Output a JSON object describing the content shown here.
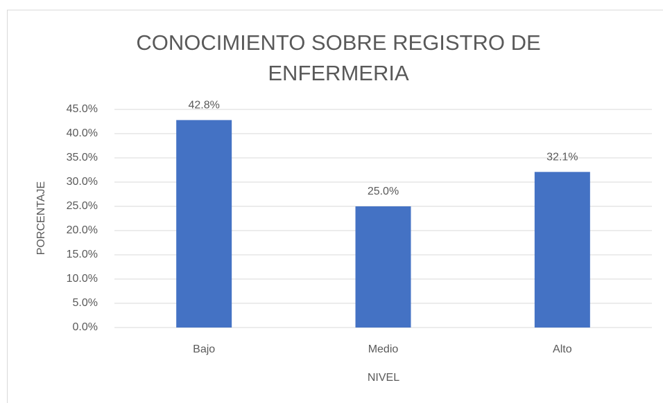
{
  "chart_data": {
    "type": "bar",
    "title": "CONOCIMIENTO SOBRE REGISTRO DE ENFERMERIA",
    "x_label": "NIVEL",
    "y_label": "PORCENTAJE",
    "categories": [
      "Bajo",
      "Medio",
      "Alto"
    ],
    "values": [
      42.8,
      25.0,
      32.1
    ],
    "value_labels": [
      "42.8%",
      "25.0%",
      "32.1%"
    ],
    "color": "#4472c4",
    "ylim": [
      0,
      45
    ],
    "yticks": [
      {
        "value": 0,
        "label": "0.0%"
      },
      {
        "value": 5,
        "label": "5.0%"
      },
      {
        "value": 10,
        "label": "10.0%"
      },
      {
        "value": 15,
        "label": "15.0%"
      },
      {
        "value": 20,
        "label": "20.0%"
      },
      {
        "value": 25,
        "label": "25.0%"
      },
      {
        "value": 30,
        "label": "30.0%"
      },
      {
        "value": 35,
        "label": "35.0%"
      },
      {
        "value": 40,
        "label": "40.0%"
      },
      {
        "value": 45,
        "label": "45.0%"
      }
    ],
    "grid": true
  }
}
